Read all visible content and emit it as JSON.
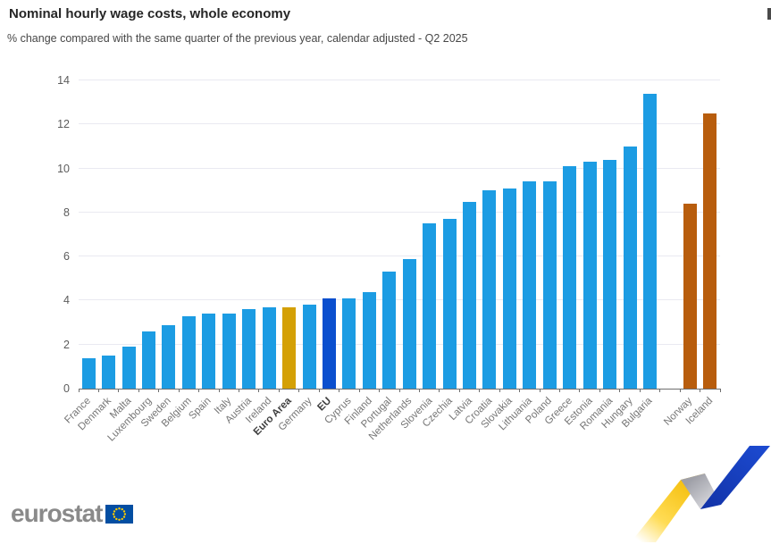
{
  "header": {
    "title": "Nominal hourly wage costs, whole economy",
    "subtitle": "% change compared with the same quarter of the previous year, calendar adjusted - Q2 2025"
  },
  "chart_data": {
    "type": "bar",
    "title": "Nominal hourly wage costs, whole economy",
    "subtitle": "% change compared with the same quarter of the previous year, calendar adjusted - Q2 2025",
    "unit": "%",
    "xlabel": "",
    "ylabel": "",
    "ylim": [
      0,
      14
    ],
    "yticks": [
      0,
      2,
      4,
      6,
      8,
      10,
      12,
      14
    ],
    "grid": true,
    "legend": "none",
    "categories": [
      "France",
      "Denmark",
      "Malta",
      "Luxembourg",
      "Sweden",
      "Belgium",
      "Spain",
      "Italy",
      "Austria",
      "Ireland",
      "Euro Area",
      "Germany",
      "EU",
      "Cyprus",
      "Finland",
      "Portugal",
      "Netherlands",
      "Slovenia",
      "Czechia",
      "Latvia",
      "Croatia",
      "Slovakia",
      "Lithuania",
      "Poland",
      "Greece",
      "Estonia",
      "Romania",
      "Hungary",
      "Bulgaria",
      "Norway",
      "Iceland"
    ],
    "values": [
      1.4,
      1.5,
      1.9,
      2.6,
      2.9,
      3.3,
      3.4,
      3.4,
      3.6,
      3.7,
      3.7,
      3.8,
      4.1,
      4.1,
      4.4,
      5.3,
      5.9,
      7.5,
      7.7,
      8.5,
      9.0,
      9.1,
      9.4,
      9.4,
      10.1,
      10.3,
      10.4,
      11.0,
      13.4,
      8.4,
      12.5
    ],
    "roles": [
      "member",
      "member",
      "member",
      "member",
      "member",
      "member",
      "member",
      "member",
      "member",
      "member",
      "euro-area",
      "member",
      "eu",
      "member",
      "member",
      "member",
      "member",
      "member",
      "member",
      "member",
      "member",
      "member",
      "member",
      "member",
      "member",
      "member",
      "member",
      "member",
      "member",
      "efta",
      "efta"
    ],
    "bold_labels": [
      "Euro Area",
      "EU"
    ],
    "gap_before_index": 29,
    "colors": {
      "member": "#1c9ce3",
      "euro-area": "#d4a005",
      "eu": "#0b4fce",
      "efta": "#b85d0d",
      "gridline": "#e9e9f1",
      "axis": "#6e6e6e"
    }
  },
  "footer": {
    "logo_text": "eurostat",
    "flag_blue": "#034ea2",
    "star_yellow": "#ffcc00"
  },
  "decor": {
    "ribbon_yellow": "#f5c314",
    "ribbon_gray": "#c2c2c8",
    "ribbon_blue": "#1a43c8"
  }
}
